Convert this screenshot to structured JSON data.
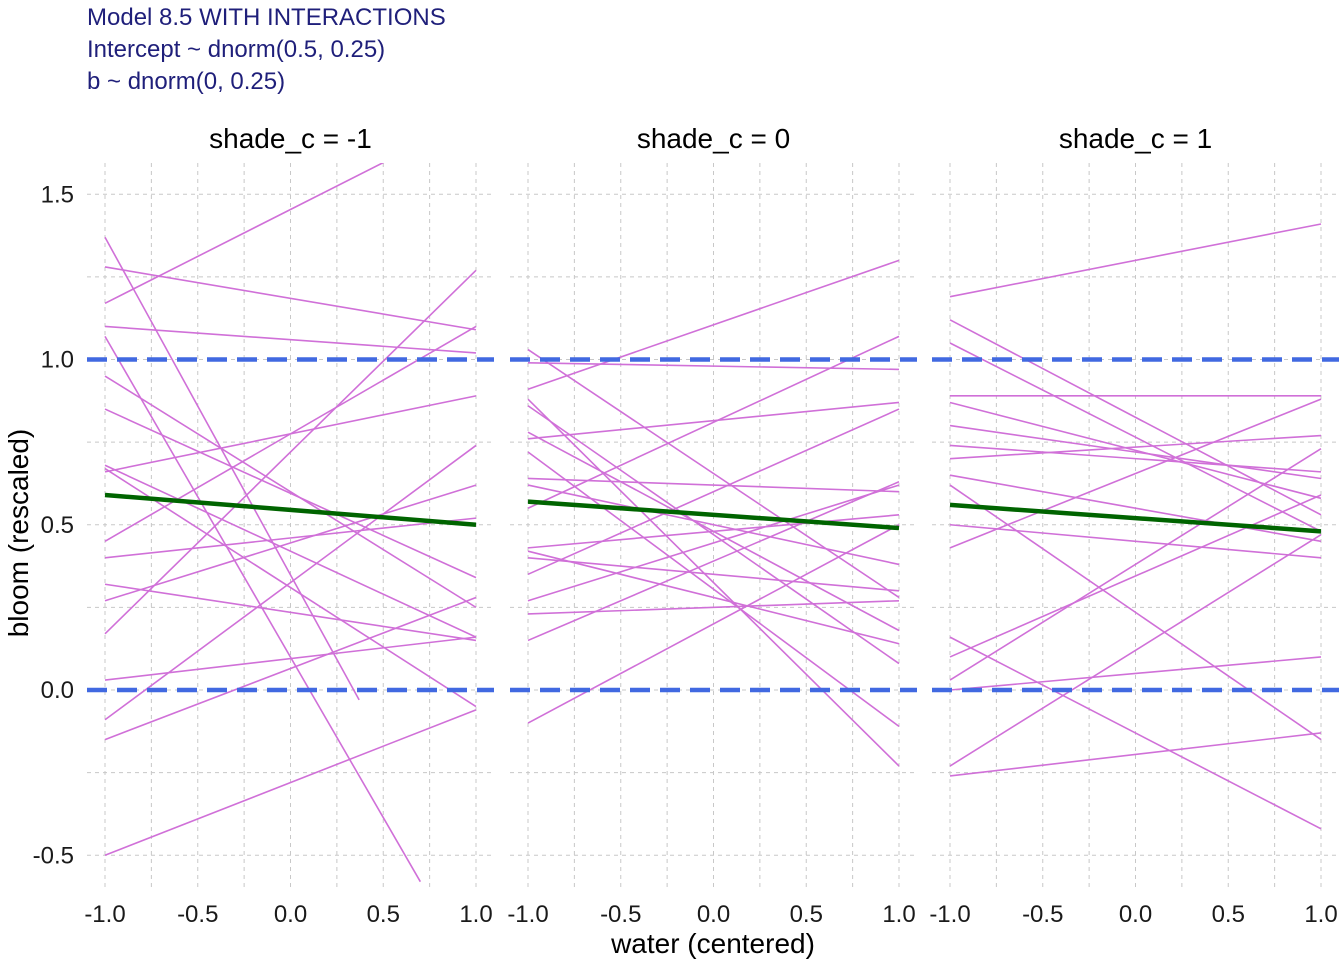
{
  "header": {
    "title_lines": [
      "Model 8.5 WITH INTERACTIONS",
      "Intercept ~ dnorm(0.5, 0.25)",
      "b ~ dnorm(0, 0.25)"
    ]
  },
  "chart_data": {
    "type": "line",
    "facet_by": "shade_c",
    "xlabel": "water (centered)",
    "ylabel": "bloom (rescaled)",
    "xlim": [
      -1.0,
      1.0
    ],
    "ylim": [
      -0.6,
      1.6
    ],
    "x_ticks": [
      "-1.0",
      "-0.5",
      "0.0",
      "0.5",
      "1.0"
    ],
    "y_ticks": [
      "-0.5",
      "0.0",
      "0.5",
      "1.0",
      "1.5"
    ],
    "grid": true,
    "reference_lines": [
      {
        "y": 1.0,
        "style": "dashed",
        "color": "#4169e1"
      },
      {
        "y": 0.0,
        "style": "dashed",
        "color": "#4169e1"
      }
    ],
    "colors": {
      "prior_lines": "#d070d8",
      "mean_line": "#006400",
      "reference": "#4169e1"
    },
    "panels": [
      {
        "label": "shade_c = -1",
        "mean_line": {
          "x": [
            -1.0,
            1.0
          ],
          "y": [
            0.59,
            0.5
          ]
        },
        "prior_lines": [
          [
            -1.0,
            1.17,
            0.55,
            1.61
          ],
          [
            -1.0,
            1.37,
            0.37,
            -0.03
          ],
          [
            -1.0,
            1.28,
            1.0,
            1.09
          ],
          [
            -1.0,
            1.1,
            1.0,
            1.02
          ],
          [
            -1.0,
            1.07,
            0.7,
            -0.58
          ],
          [
            -1.0,
            0.95,
            1.0,
            0.25
          ],
          [
            -1.0,
            0.85,
            1.0,
            0.34
          ],
          [
            -1.0,
            0.68,
            1.0,
            0.16
          ],
          [
            -1.0,
            0.66,
            1.0,
            0.89
          ],
          [
            -1.0,
            0.45,
            1.0,
            1.1
          ],
          [
            -1.0,
            0.4,
            1.0,
            0.52
          ],
          [
            -1.0,
            0.32,
            1.0,
            0.15
          ],
          [
            -1.0,
            0.27,
            1.0,
            0.62
          ],
          [
            -1.0,
            0.17,
            1.0,
            1.27
          ],
          [
            -1.0,
            0.03,
            1.0,
            0.16
          ],
          [
            -1.0,
            -0.09,
            1.0,
            0.74
          ],
          [
            -1.0,
            -0.15,
            1.0,
            0.28
          ],
          [
            -1.0,
            -0.5,
            1.0,
            -0.06
          ],
          [
            -1.0,
            0.67,
            1.0,
            -0.05
          ]
        ]
      },
      {
        "label": "shade_c = 0",
        "mean_line": {
          "x": [
            -1.0,
            1.0
          ],
          "y": [
            0.57,
            0.49
          ]
        },
        "prior_lines": [
          [
            -1.0,
            1.03,
            1.0,
            0.28
          ],
          [
            -1.0,
            0.99,
            1.0,
            0.97
          ],
          [
            -1.0,
            0.91,
            1.0,
            1.3
          ],
          [
            -1.0,
            0.88,
            1.0,
            -0.23
          ],
          [
            -1.0,
            0.86,
            1.0,
            0.08
          ],
          [
            -1.0,
            0.78,
            1.0,
            0.18
          ],
          [
            -1.0,
            0.76,
            1.0,
            0.87
          ],
          [
            -1.0,
            0.72,
            1.0,
            -0.11
          ],
          [
            -1.0,
            0.64,
            1.0,
            0.6
          ],
          [
            -1.0,
            0.62,
            1.0,
            0.38
          ],
          [
            -1.0,
            0.55,
            1.0,
            1.07
          ],
          [
            -1.0,
            0.43,
            1.0,
            0.53
          ],
          [
            -1.0,
            0.4,
            1.0,
            0.3
          ],
          [
            -1.0,
            0.35,
            1.0,
            0.85
          ],
          [
            -1.0,
            0.27,
            1.0,
            0.62
          ],
          [
            -1.0,
            0.23,
            1.0,
            0.27
          ],
          [
            -1.0,
            0.15,
            1.0,
            0.63
          ],
          [
            -1.0,
            -0.1,
            1.0,
            0.5
          ],
          [
            -1.0,
            0.42,
            1.0,
            0.14
          ]
        ]
      },
      {
        "label": "shade_c = 1",
        "mean_line": {
          "x": [
            -1.0,
            1.0
          ],
          "y": [
            0.56,
            0.48
          ]
        },
        "prior_lines": [
          [
            -1.0,
            1.19,
            1.0,
            1.41
          ],
          [
            -1.0,
            1.12,
            1.0,
            0.53
          ],
          [
            -1.0,
            1.05,
            1.0,
            0.48
          ],
          [
            -1.0,
            0.89,
            1.0,
            0.89
          ],
          [
            -1.0,
            0.87,
            1.0,
            0.58
          ],
          [
            -1.0,
            0.8,
            1.0,
            0.64
          ],
          [
            -1.0,
            0.74,
            1.0,
            0.66
          ],
          [
            -1.0,
            0.7,
            1.0,
            0.77
          ],
          [
            -1.0,
            0.65,
            1.0,
            0.45
          ],
          [
            -1.0,
            0.62,
            1.0,
            -0.15
          ],
          [
            -1.0,
            0.5,
            1.0,
            0.4
          ],
          [
            -1.0,
            0.43,
            1.0,
            0.88
          ],
          [
            -1.0,
            0.16,
            1.0,
            -0.42
          ],
          [
            -1.0,
            0.1,
            1.0,
            0.59
          ],
          [
            -1.0,
            0.03,
            1.0,
            0.73
          ],
          [
            -1.0,
            0.0,
            1.0,
            0.1
          ],
          [
            -1.0,
            -0.23,
            1.0,
            0.47
          ],
          [
            -1.0,
            -0.26,
            1.0,
            -0.13
          ]
        ]
      }
    ]
  }
}
